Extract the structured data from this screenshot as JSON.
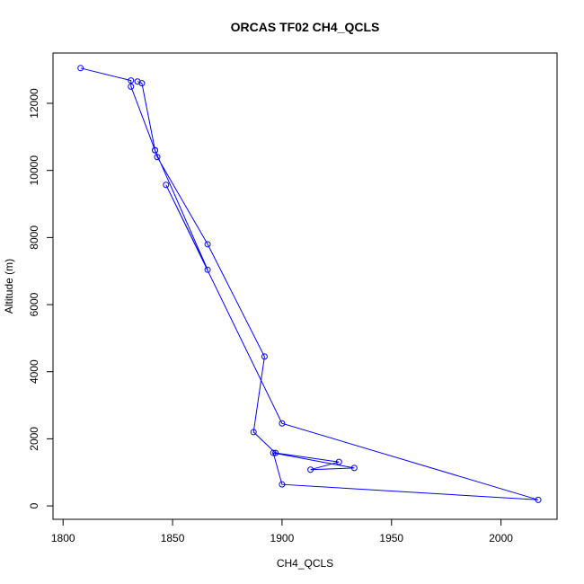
{
  "chart_data": {
    "type": "line",
    "title": "ORCAS TF02 CH4_QCLS",
    "xlabel": "CH4_QCLS",
    "ylabel": "Altitude (m)",
    "xlim": [
      1795.4,
      2025.6
    ],
    "ylim": [
      -400,
      13500
    ],
    "x_ticks": [
      1800,
      1850,
      1900,
      1950,
      2000
    ],
    "y_ticks": [
      0,
      2000,
      4000,
      6000,
      8000,
      10000,
      12000
    ],
    "grid": false,
    "legend": "none",
    "series_color": "#0000ff",
    "series": [
      {
        "x": [
          1808,
          1831,
          1831,
          1842,
          1843,
          1866,
          1892,
          1887,
          1897,
          1926,
          1913,
          1933,
          1896,
          1900,
          2017,
          1900,
          1847,
          1866,
          1842,
          1836,
          1834
        ],
        "y": [
          13050,
          12680,
          12500,
          10600,
          10400,
          7800,
          4450,
          2200,
          1580,
          1310,
          1080,
          1130,
          1580,
          640,
          180,
          2460,
          9570,
          7040,
          10600,
          12600,
          12650
        ]
      }
    ]
  }
}
